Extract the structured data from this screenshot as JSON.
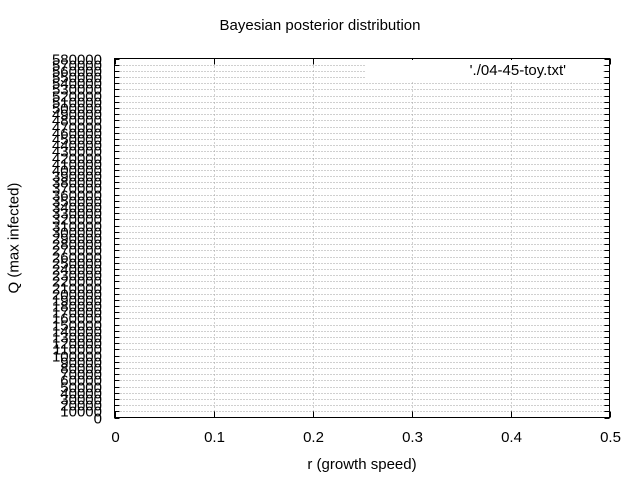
{
  "chart_data": {
    "type": "heatmap",
    "title": "Bayesian posterior distribution",
    "xlabel": "r (growth speed)",
    "ylabel": "Q (max infected)",
    "xlim": [
      0,
      0.5
    ],
    "ylim": [
      0,
      580000
    ],
    "x_ticks": [
      0,
      0.1,
      0.2,
      0.3,
      0.4,
      0.5
    ],
    "x_tick_labels": [
      "0",
      "0.1",
      "0.2",
      "0.3",
      "0.4",
      "0.5"
    ],
    "y_ticks": [
      0,
      10000,
      20000,
      30000,
      40000,
      50000,
      60000,
      70000,
      80000,
      90000,
      100000,
      110000,
      120000,
      130000,
      140000,
      150000,
      160000,
      170000,
      180000,
      190000,
      200000,
      210000,
      220000,
      230000,
      240000,
      250000,
      260000,
      270000,
      280000,
      290000,
      300000,
      310000,
      320000,
      330000,
      340000,
      350000,
      360000,
      370000,
      380000,
      390000,
      400000,
      410000,
      420000,
      430000,
      440000,
      450000,
      460000,
      470000,
      480000,
      490000,
      500000,
      510000,
      520000,
      530000,
      540000,
      550000,
      560000,
      570000,
      580000
    ],
    "y_tick_labels": [
      "0",
      "10000",
      "20000",
      "30000",
      "40000",
      "50000",
      "60000",
      "70000",
      "80000",
      "90000",
      "100000",
      "110000",
      "120000",
      "130000",
      "140000",
      "150000",
      "160000",
      "170000",
      "180000",
      "190000",
      "200000",
      "210000",
      "220000",
      "230000",
      "240000",
      "250000",
      "260000",
      "270000",
      "280000",
      "290000",
      "300000",
      "310000",
      "320000",
      "330000",
      "340000",
      "350000",
      "360000",
      "370000",
      "380000",
      "390000",
      "400000",
      "410000",
      "420000",
      "430000",
      "440000",
      "450000",
      "460000",
      "470000",
      "480000",
      "490000",
      "500000",
      "510000",
      "520000",
      "530000",
      "540000",
      "550000",
      "560000",
      "570000",
      "580000"
    ],
    "grid": true,
    "legend_position": "top-right",
    "series": [
      {
        "name": "'./04-45-toy.txt'",
        "values": []
      }
    ],
    "colors": {
      "grid": "#a0a0a0",
      "axis": "#000000",
      "background": "#ffffff"
    }
  }
}
